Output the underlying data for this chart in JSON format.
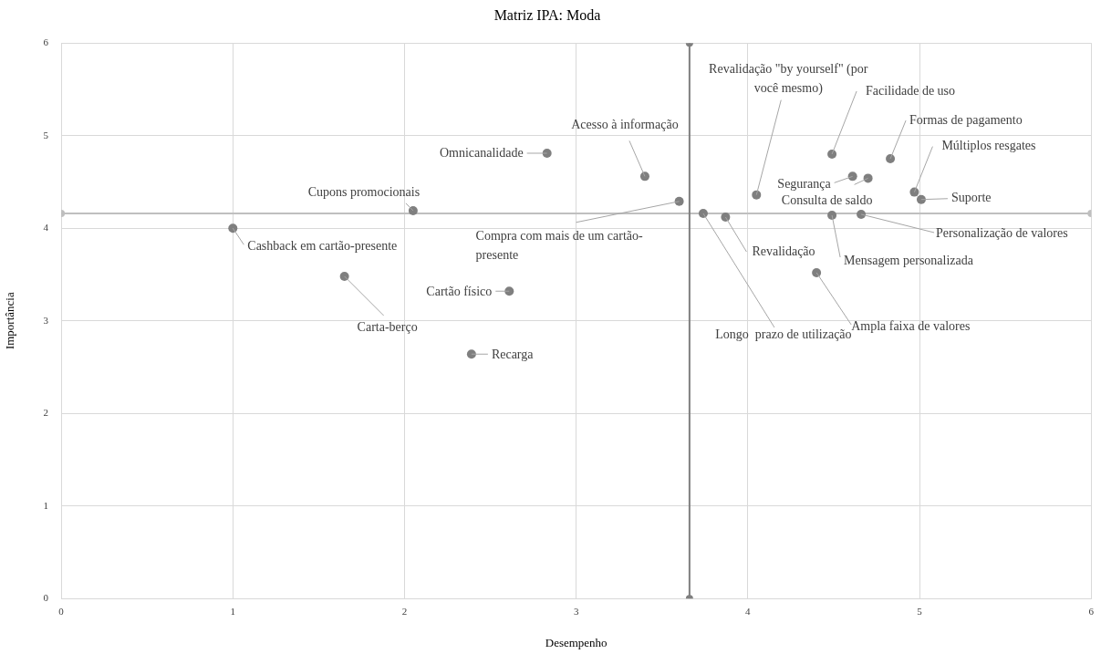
{
  "chart_data": {
    "type": "scatter",
    "title": "Matriz IPA: Moda",
    "xlabel": "Desempenho",
    "ylabel": "Importância",
    "x": [
      1.0,
      1.65,
      2.05,
      2.39,
      2.61,
      2.83,
      3.4,
      3.6,
      3.74,
      3.87,
      4.05,
      4.4,
      4.49,
      4.49,
      4.61,
      4.66,
      4.7,
      4.83,
      4.97,
      5.01
    ],
    "series": [
      {
        "color": "#7f7f7f",
        "values": [
          4.0,
          3.48,
          4.19,
          2.64,
          3.32,
          4.81,
          4.56,
          4.29,
          4.16,
          4.12,
          4.36,
          3.52,
          4.8,
          4.14,
          4.56,
          4.15,
          4.54,
          4.75,
          4.39,
          4.31
        ]
      },
      {
        "type": "line",
        "color": "#7f7f7f",
        "x": [
          3.66,
          3.66
        ],
        "values": [
          0,
          6
        ]
      },
      {
        "type": "line",
        "color": "#bfbfbf",
        "x": [
          0,
          6
        ],
        "values": [
          4.16,
          4.16
        ]
      }
    ],
    "marker": "circle",
    "grid": true,
    "legend": false,
    "xlim": [
      0,
      6
    ],
    "xticks": [
      0,
      1,
      2,
      3,
      4,
      5,
      6
    ],
    "ylim": [
      0,
      6
    ],
    "yticks": [
      0,
      1,
      2,
      3,
      4,
      5,
      6
    ],
    "annotations": [
      {
        "text": "Cashback em cartão-presente",
        "x": 1.0,
        "y": 4.0
      },
      {
        "text": "Carta-berço",
        "x": 1.65,
        "y": 3.48
      },
      {
        "text": "Cupons promocionais",
        "x": 2.05,
        "y": 4.19
      },
      {
        "text": "Recarga",
        "x": 2.39,
        "y": 2.64
      },
      {
        "text": "Cartão físico",
        "x": 2.61,
        "y": 3.32
      },
      {
        "text": "Omnicanalidade",
        "x": 2.83,
        "y": 4.81
      },
      {
        "text": "Acesso à informação",
        "x": 3.4,
        "y": 4.56
      },
      {
        "text": "Compra com mais de um cartão-presente",
        "x": 3.6,
        "y": 4.29
      },
      {
        "text": "Longo  prazo de utilização",
        "x": 3.74,
        "y": 4.16
      },
      {
        "text": "Revalidação",
        "x": 3.87,
        "y": 4.12
      },
      {
        "text": "Revalidação \"by yourself\" (por você mesmo)",
        "x": 4.05,
        "y": 4.36
      },
      {
        "text": "Ampla faixa de valores",
        "x": 4.4,
        "y": 3.52
      },
      {
        "text": "Facilidade de uso",
        "x": 4.49,
        "y": 4.8
      },
      {
        "text": "Mensagem personalizada",
        "x": 4.49,
        "y": 4.14
      },
      {
        "text": "Segurança",
        "x": 4.61,
        "y": 4.56
      },
      {
        "text": "Personalização de valores",
        "x": 4.66,
        "y": 4.15
      },
      {
        "text": "Consulta de saldo",
        "x": 4.7,
        "y": 4.54
      },
      {
        "text": "Formas de pagamento",
        "x": 4.83,
        "y": 4.75
      },
      {
        "text": "Múltiplos resgates",
        "x": 4.97,
        "y": 4.39
      },
      {
        "text": "Suporte",
        "x": 5.01,
        "y": 4.31
      }
    ]
  }
}
